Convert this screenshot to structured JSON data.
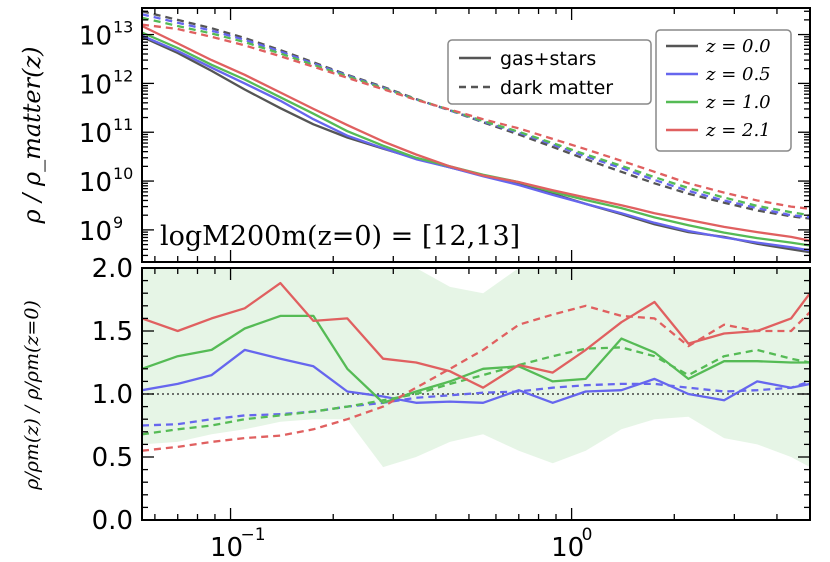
{
  "chart_data": [
    {
      "panel": "top",
      "type": "line",
      "xscale": "log",
      "yscale": "log",
      "xlim": [
        0.055,
        5.0
      ],
      "ylim": [
        220000000.0,
        35000000000000.0
      ],
      "ylabel": "ρ / ρ_matter(z)",
      "annotation": "logM200m(z=0) = [12,13]",
      "ytick_labels": [
        "10",
        "10",
        "10",
        "10",
        "10"
      ],
      "ytick_exps": [
        "13",
        "12",
        "11",
        "10",
        "9"
      ],
      "ytick_values": [
        10000000000000.0,
        1000000000000.0,
        100000000000.0,
        10000000000.0,
        1000000000.0
      ],
      "style_legend": [
        {
          "label": "gas+stars",
          "dash": "solid"
        },
        {
          "label": "dark matter",
          "dash": "dashed"
        }
      ],
      "z_legend_labels": [
        "z = 0.0",
        "z = 0.5",
        "z = 1.0",
        "z = 2.1"
      ],
      "series": [
        {
          "name": "z = 0.0 gas+stars",
          "color": "#555555",
          "dash": "solid",
          "x": [
            0.055,
            0.07,
            0.088,
            0.11,
            0.14,
            0.175,
            0.22,
            0.28,
            0.35,
            0.44,
            0.55,
            0.7,
            0.88,
            1.1,
            1.4,
            1.75,
            2.2,
            2.8,
            3.5,
            4.4,
            5.0
          ],
          "y": [
            9000000000000.0,
            4200000000000.0,
            1800000000000.0,
            750000000000.0,
            310000000000.0,
            145000000000.0,
            78000000000.0,
            46000000000.0,
            29000000000.0,
            19000000000.0,
            13000000000.0,
            8700000000.0,
            5500000000.0,
            3400000000.0,
            2100000000.0,
            1300000000.0,
            900000000.0,
            720000000.0,
            520000000.0,
            400000000.0,
            350000000.0
          ]
        },
        {
          "name": "z = 0.0 dark matter",
          "color": "#555555",
          "dash": "dashed",
          "x": [
            0.055,
            0.07,
            0.088,
            0.11,
            0.14,
            0.175,
            0.22,
            0.28,
            0.35,
            0.44,
            0.55,
            0.7,
            0.88,
            1.1,
            1.4,
            1.75,
            2.2,
            2.8,
            3.5,
            4.4,
            5.0
          ],
          "y": [
            30000000000000.0,
            20000000000000.0,
            13500000000000.0,
            8500000000000.0,
            4800000000000.0,
            2700000000000.0,
            1500000000000.0,
            850000000000.0,
            480000000000.0,
            280000000000.0,
            160000000000.0,
            90000000000.0,
            50000000000.0,
            28000000000.0,
            15500000000.0,
            9000000000.0,
            5500000000.0,
            3600000000.0,
            2500000000.0,
            1900000000.0,
            1700000000.0
          ]
        },
        {
          "name": "z = 0.5 gas+stars",
          "color": "#6666ee",
          "dash": "solid",
          "x": [
            0.055,
            0.07,
            0.088,
            0.11,
            0.14,
            0.175,
            0.22,
            0.28,
            0.35,
            0.44,
            0.55,
            0.7,
            0.88,
            1.1,
            1.4,
            1.75,
            2.2,
            2.8,
            3.5,
            4.4,
            5.0
          ],
          "y": [
            9500000000000.0,
            4600000000000.0,
            2100000000000.0,
            1000000000000.0,
            440000000000.0,
            185000000000.0,
            85000000000.0,
            47000000000.0,
            28000000000.0,
            19000000000.0,
            12500000000.0,
            8300000000.0,
            5200000000.0,
            3400000000.0,
            2200000000.0,
            1400000000.0,
            950000000.0,
            700000000.0,
            550000000.0,
            440000000.0,
            380000000.0
          ]
        },
        {
          "name": "z = 0.5 dark matter",
          "color": "#6666ee",
          "dash": "dashed",
          "x": [
            0.055,
            0.07,
            0.088,
            0.11,
            0.14,
            0.175,
            0.22,
            0.28,
            0.35,
            0.44,
            0.55,
            0.7,
            0.88,
            1.1,
            1.4,
            1.75,
            2.2,
            2.8,
            3.5,
            4.4,
            5.0
          ],
          "y": [
            26000000000000.0,
            17500000000000.0,
            12000000000000.0,
            7800000000000.0,
            4500000000000.0,
            2550000000000.0,
            1450000000000.0,
            820000000000.0,
            470000000000.0,
            280000000000.0,
            165000000000.0,
            98000000000.0,
            56000000000.0,
            32000000000.0,
            18500000000.0,
            10500000000.0,
            6300000000.0,
            4000000000.0,
            2800000000.0,
            2000000000.0,
            1800000000.0
          ]
        },
        {
          "name": "z = 1.0 gas+stars",
          "color": "#55bb55",
          "dash": "solid",
          "x": [
            0.055,
            0.07,
            0.088,
            0.11,
            0.14,
            0.175,
            0.22,
            0.28,
            0.35,
            0.44,
            0.55,
            0.7,
            0.88,
            1.1,
            1.4,
            1.75,
            2.2,
            2.8,
            3.5,
            4.4,
            5.0
          ],
          "y": [
            11000000000000.0,
            5300000000000.0,
            2400000000000.0,
            1200000000000.0,
            520000000000.0,
            240000000000.0,
            105000000000.0,
            53000000000.0,
            30000000000.0,
            20000000000.0,
            13500000000.0,
            9500000000.0,
            6000000000.0,
            4100000000.0,
            2800000000.0,
            1800000000.0,
            1250000000.0,
            880000000.0,
            680000000.0,
            550000000.0,
            480000000.0
          ]
        },
        {
          "name": "z = 1.0 dark matter",
          "color": "#55bb55",
          "dash": "dashed",
          "x": [
            0.055,
            0.07,
            0.088,
            0.11,
            0.14,
            0.175,
            0.22,
            0.28,
            0.35,
            0.44,
            0.55,
            0.7,
            0.88,
            1.1,
            1.4,
            1.75,
            2.2,
            2.8,
            3.5,
            4.4,
            5.0
          ],
          "y": [
            22000000000000.0,
            15000000000000.0,
            10500000000000.0,
            7000000000000.0,
            4100000000000.0,
            2400000000000.0,
            1400000000000.0,
            800000000000.0,
            470000000000.0,
            285000000000.0,
            170000000000.0,
            102000000000.0,
            60000000000.0,
            35000000000.0,
            20500000000.0,
            12000000000.0,
            7200000000.0,
            4600000000.0,
            3100000000.0,
            2300000000.0,
            2000000000.0
          ]
        },
        {
          "name": "z = 2.1 gas+stars",
          "color": "#e06060",
          "dash": "solid",
          "x": [
            0.055,
            0.07,
            0.088,
            0.11,
            0.14,
            0.175,
            0.22,
            0.28,
            0.35,
            0.44,
            0.55,
            0.7,
            0.88,
            1.1,
            1.4,
            1.75,
            2.2,
            2.8,
            3.5,
            4.4,
            5.0
          ],
          "y": [
            15000000000000.0,
            6600000000000.0,
            3000000000000.0,
            1500000000000.0,
            650000000000.0,
            300000000000.0,
            140000000000.0,
            65000000000.0,
            35000000000.0,
            20000000000.0,
            13000000000.0,
            9500000000.0,
            6500000000.0,
            4600000000.0,
            3200000000.0,
            2200000000.0,
            1600000000.0,
            1150000000.0,
            900000000.0,
            720000000.0,
            600000000.0
          ]
        },
        {
          "name": "z = 2.1 dark matter",
          "color": "#e06060",
          "dash": "dashed",
          "x": [
            0.055,
            0.07,
            0.088,
            0.11,
            0.14,
            0.175,
            0.22,
            0.28,
            0.35,
            0.44,
            0.55,
            0.7,
            0.88,
            1.1,
            1.4,
            1.75,
            2.2,
            2.8,
            3.5,
            4.4,
            5.0
          ],
          "y": [
            16000000000000.0,
            13000000000000.0,
            9000000000000.0,
            6000000000000.0,
            3600000000000.0,
            2200000000000.0,
            1300000000000.0,
            760000000000.0,
            460000000000.0,
            290000000000.0,
            185000000000.0,
            120000000000.0,
            73000000000.0,
            45000000000.0,
            26000000000.0,
            15500000000.0,
            9000000000.0,
            5800000000.0,
            4000000000.0,
            3000000000.0,
            2700000000.0
          ]
        }
      ]
    },
    {
      "panel": "bottom",
      "type": "line",
      "xscale": "log",
      "xlim": [
        0.055,
        5.0
      ],
      "ylim": [
        0.0,
        2.0
      ],
      "ylabel": "ρ/ρm(z) / ρ/ρm(z=0)",
      "ytick_labels": [
        "0.0",
        "0.5",
        "1.0",
        "1.5",
        "2.0"
      ],
      "ytick_values": [
        0.0,
        0.5,
        1.0,
        1.5,
        2.0
      ],
      "xtick_labels": [
        "10",
        "10"
      ],
      "xtick_exps": [
        "−1",
        "0"
      ],
      "xtick_values": [
        0.1,
        1.0
      ],
      "reference_line": 1.0,
      "band": {
        "color": "#55bb55",
        "x": [
          0.055,
          0.07,
          0.088,
          0.11,
          0.14,
          0.175,
          0.22,
          0.28,
          0.35,
          0.44,
          0.55,
          0.7,
          0.88,
          1.1,
          1.4,
          1.75,
          2.2,
          2.8,
          3.5,
          4.4,
          5.0
        ],
        "upper": [
          2.0,
          2.0,
          2.0,
          2.0,
          2.0,
          2.0,
          2.0,
          2.0,
          2.0,
          1.85,
          1.8,
          2.0,
          2.0,
          2.0,
          2.0,
          2.0,
          2.0,
          2.0,
          2.0,
          2.0,
          2.0
        ],
        "lower": [
          0.6,
          0.62,
          0.68,
          0.72,
          0.78,
          0.8,
          0.8,
          0.42,
          0.5,
          0.62,
          0.68,
          0.55,
          0.45,
          0.55,
          0.72,
          0.8,
          0.82,
          0.65,
          0.6,
          0.5,
          0.42
        ]
      },
      "series": [
        {
          "name": "z = 0.5 gas+stars",
          "color": "#6666ee",
          "dash": "solid",
          "x": [
            0.055,
            0.07,
            0.088,
            0.11,
            0.14,
            0.175,
            0.22,
            0.28,
            0.35,
            0.44,
            0.55,
            0.7,
            0.88,
            1.1,
            1.4,
            1.75,
            2.2,
            2.8,
            3.5,
            4.4,
            5.0
          ],
          "y": [
            1.03,
            1.08,
            1.15,
            1.35,
            1.28,
            1.22,
            1.02,
            0.98,
            0.93,
            0.94,
            0.93,
            1.03,
            0.93,
            1.02,
            1.03,
            1.12,
            1.0,
            0.95,
            1.1,
            1.05,
            1.08
          ]
        },
        {
          "name": "z = 0.5 dark matter",
          "color": "#6666ee",
          "dash": "dashed",
          "x": [
            0.055,
            0.07,
            0.088,
            0.11,
            0.14,
            0.175,
            0.22,
            0.28,
            0.35,
            0.44,
            0.55,
            0.7,
            0.88,
            1.1,
            1.4,
            1.75,
            2.2,
            2.8,
            3.5,
            4.4,
            5.0
          ],
          "y": [
            0.75,
            0.76,
            0.8,
            0.83,
            0.84,
            0.86,
            0.9,
            0.93,
            0.97,
            0.99,
            1.01,
            1.02,
            1.05,
            1.07,
            1.08,
            1.08,
            1.05,
            1.02,
            1.03,
            1.05,
            1.1
          ]
        },
        {
          "name": "z = 1.0 gas+stars",
          "color": "#55bb55",
          "dash": "solid",
          "x": [
            0.055,
            0.07,
            0.088,
            0.11,
            0.14,
            0.175,
            0.22,
            0.28,
            0.35,
            0.44,
            0.55,
            0.7,
            0.88,
            1.1,
            1.4,
            1.75,
            2.2,
            2.8,
            3.5,
            4.4,
            5.0
          ],
          "y": [
            1.2,
            1.3,
            1.35,
            1.52,
            1.62,
            1.62,
            1.2,
            0.93,
            1.02,
            1.1,
            1.2,
            1.22,
            1.1,
            1.12,
            1.44,
            1.33,
            1.12,
            1.26,
            1.26,
            1.25,
            1.25
          ]
        },
        {
          "name": "z = 1.0 dark matter",
          "color": "#55bb55",
          "dash": "dashed",
          "x": [
            0.055,
            0.07,
            0.088,
            0.11,
            0.14,
            0.175,
            0.22,
            0.28,
            0.35,
            0.44,
            0.55,
            0.7,
            0.88,
            1.1,
            1.4,
            1.75,
            2.2,
            2.8,
            3.5,
            4.4,
            5.0
          ],
          "y": [
            0.68,
            0.72,
            0.75,
            0.8,
            0.83,
            0.86,
            0.9,
            0.95,
            1.0,
            1.08,
            1.15,
            1.23,
            1.3,
            1.36,
            1.37,
            1.3,
            1.15,
            1.3,
            1.35,
            1.28,
            1.25
          ]
        },
        {
          "name": "z = 2.1 gas+stars",
          "color": "#e06060",
          "dash": "solid",
          "x": [
            0.055,
            0.07,
            0.088,
            0.11,
            0.14,
            0.175,
            0.22,
            0.28,
            0.35,
            0.44,
            0.55,
            0.7,
            0.88,
            1.1,
            1.4,
            1.75,
            2.2,
            2.8,
            3.5,
            4.4,
            5.0
          ],
          "y": [
            1.6,
            1.5,
            1.6,
            1.68,
            1.88,
            1.58,
            1.6,
            1.28,
            1.25,
            1.18,
            1.05,
            1.23,
            1.17,
            1.35,
            1.57,
            1.73,
            1.4,
            1.48,
            1.5,
            1.6,
            1.8
          ]
        },
        {
          "name": "z = 2.1 dark matter",
          "color": "#e06060",
          "dash": "dashed",
          "x": [
            0.055,
            0.07,
            0.088,
            0.11,
            0.14,
            0.175,
            0.22,
            0.28,
            0.35,
            0.44,
            0.55,
            0.7,
            0.88,
            1.1,
            1.4,
            1.75,
            2.2,
            2.8,
            3.5,
            4.4,
            5.0
          ],
          "y": [
            0.55,
            0.58,
            0.62,
            0.65,
            0.67,
            0.72,
            0.8,
            0.9,
            1.05,
            1.2,
            1.35,
            1.55,
            1.63,
            1.7,
            1.62,
            1.6,
            1.38,
            1.55,
            1.5,
            1.5,
            1.65
          ]
        }
      ]
    }
  ]
}
